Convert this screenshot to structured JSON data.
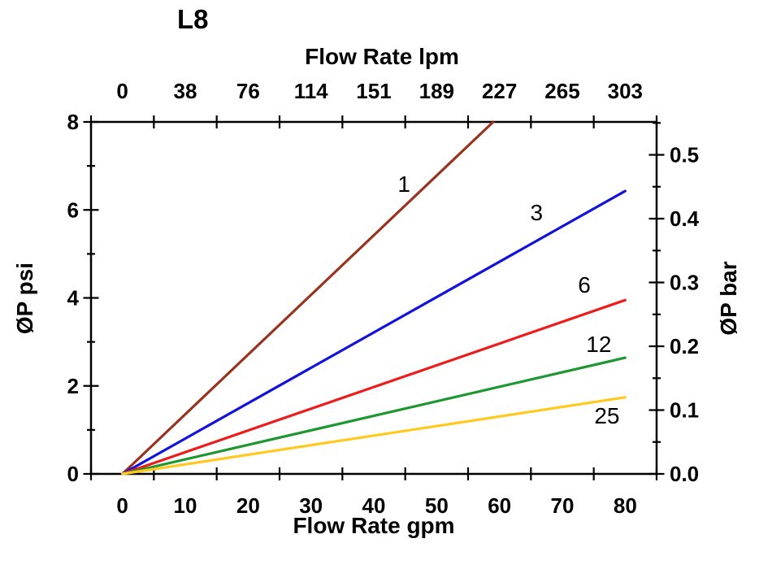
{
  "chart_data": {
    "type": "line",
    "title": "L8",
    "background": "#FFFFFF",
    "axis_color": "#000000",
    "axes": {
      "bottom": {
        "title": "Flow Rate gpm",
        "tick_labels": [
          "0",
          "10",
          "20",
          "30",
          "40",
          "50",
          "60",
          "70",
          "80"
        ],
        "units_per_interval": 10
      },
      "top": {
        "title": "Flow Rate lpm",
        "tick_labels": [
          "0",
          "38",
          "76",
          "114",
          "151",
          "189",
          "227",
          "265",
          "303"
        ]
      },
      "left": {
        "title": "ØP psi",
        "range": [
          0,
          8
        ],
        "major_ticks": [
          0,
          2,
          4,
          6,
          8
        ],
        "minor_ticks": [
          1,
          3,
          5,
          7
        ]
      },
      "right": {
        "title": "ØP bar",
        "major_tick_labels": [
          "0.0",
          "0.1",
          "0.2",
          "0.3",
          "0.4",
          "0.5"
        ],
        "minor_step_bar": 0.05,
        "psi_per_bar": 14.5038
      }
    },
    "series": [
      {
        "name": "1",
        "color": "#993320",
        "points": [
          [
            0,
            0
          ],
          [
            59,
            8.0
          ]
        ],
        "label_at": [
          44.8,
          6.58
        ]
      },
      {
        "name": "3",
        "color": "#1212D9",
        "points": [
          [
            0,
            0
          ],
          [
            80,
            6.43
          ]
        ],
        "label_at": [
          65.9,
          5.93
        ]
      },
      {
        "name": "6",
        "color": "#EC1C1C",
        "points": [
          [
            0,
            0
          ],
          [
            80,
            3.95
          ]
        ],
        "label_at": [
          73.5,
          4.29
        ]
      },
      {
        "name": "12",
        "color": "#1E9632",
        "points": [
          [
            0,
            0
          ],
          [
            80,
            2.64
          ]
        ],
        "label_at": [
          75.8,
          2.94
        ]
      },
      {
        "name": "25",
        "color": "#FFC91F",
        "points": [
          [
            0,
            0
          ],
          [
            80,
            1.74
          ]
        ],
        "label_at": [
          77.1,
          1.31
        ]
      }
    ]
  }
}
